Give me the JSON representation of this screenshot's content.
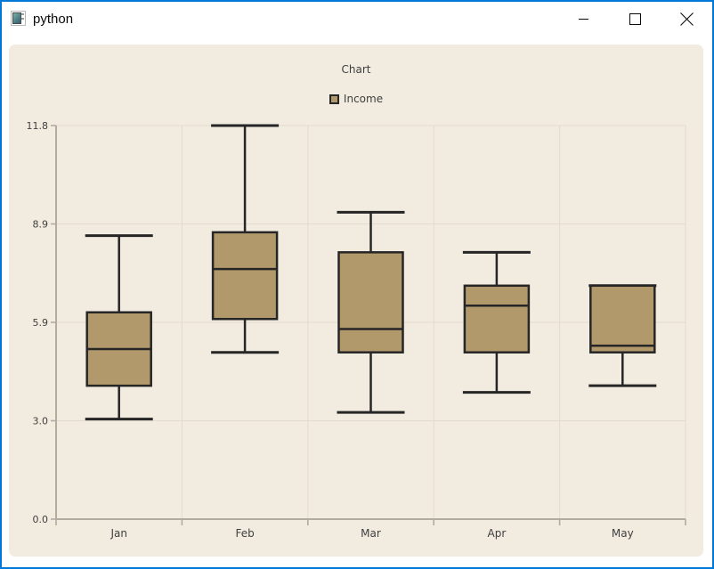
{
  "window": {
    "title": "python"
  },
  "chart_data": {
    "type": "boxplot",
    "title": "Chart",
    "legend_position": "top",
    "legend": [
      {
        "label": "Income",
        "color": "#b2996b"
      }
    ],
    "categories": [
      "Jan",
      "Feb",
      "Mar",
      "Apr",
      "May"
    ],
    "series": [
      {
        "name": "Income",
        "boxes": [
          {
            "category": "Jan",
            "min": 3.0,
            "q1": 4.0,
            "median": 5.1,
            "q3": 6.2,
            "max": 8.5
          },
          {
            "category": "Feb",
            "min": 5.0,
            "q1": 6.0,
            "median": 7.5,
            "q3": 8.6,
            "max": 11.8
          },
          {
            "category": "Mar",
            "min": 3.2,
            "q1": 5.0,
            "median": 5.7,
            "q3": 8.0,
            "max": 9.2
          },
          {
            "category": "Apr",
            "min": 3.8,
            "q1": 5.0,
            "median": 6.4,
            "q3": 7.0,
            "max": 8.0
          },
          {
            "category": "May",
            "min": 4.0,
            "q1": 5.0,
            "median": 5.2,
            "q3": 7.0,
            "max": 7.0
          }
        ]
      }
    ],
    "ylim": [
      0,
      11.8
    ],
    "y_ticks": [
      {
        "value": 0,
        "label": "0.0"
      },
      {
        "value": 2.95,
        "label": "3.0"
      },
      {
        "value": 5.9,
        "label": "5.9"
      },
      {
        "value": 8.85,
        "label": "8.9"
      },
      {
        "value": 11.8,
        "label": "11.8"
      }
    ],
    "grid": true,
    "colors": {
      "chart_bg": "#f2ebe0",
      "grid": "#e3dbcd",
      "axis": "#b2aba0",
      "box_fill": "#b2996b",
      "box_stroke": "#262626",
      "text": "#404040",
      "window_accent": "#0078d7"
    }
  }
}
